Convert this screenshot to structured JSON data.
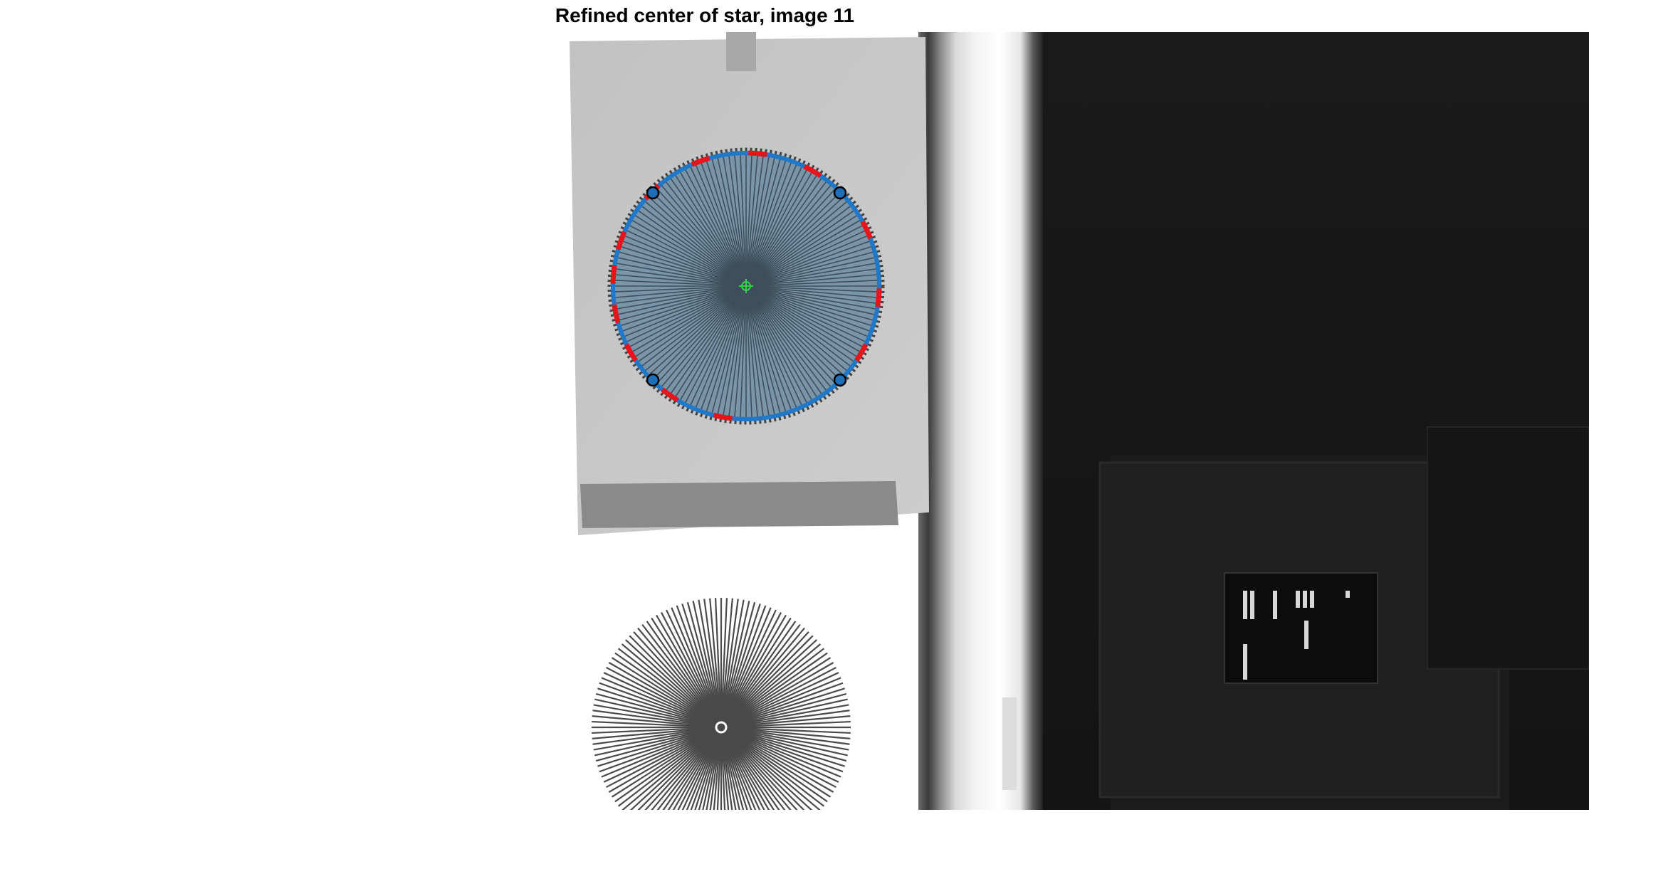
{
  "figure": {
    "title": "Refined center of star, image 11"
  },
  "colors": {
    "edge_red": "#e8141b",
    "edge_blue": "#1f78c8",
    "center_marker": "#35d04a",
    "star_overlay": "#5f8cad",
    "corner_marker": "#1f6fb8"
  },
  "overlay": {
    "corner_markers": 4,
    "red_segments": 13,
    "spokes": 72
  }
}
